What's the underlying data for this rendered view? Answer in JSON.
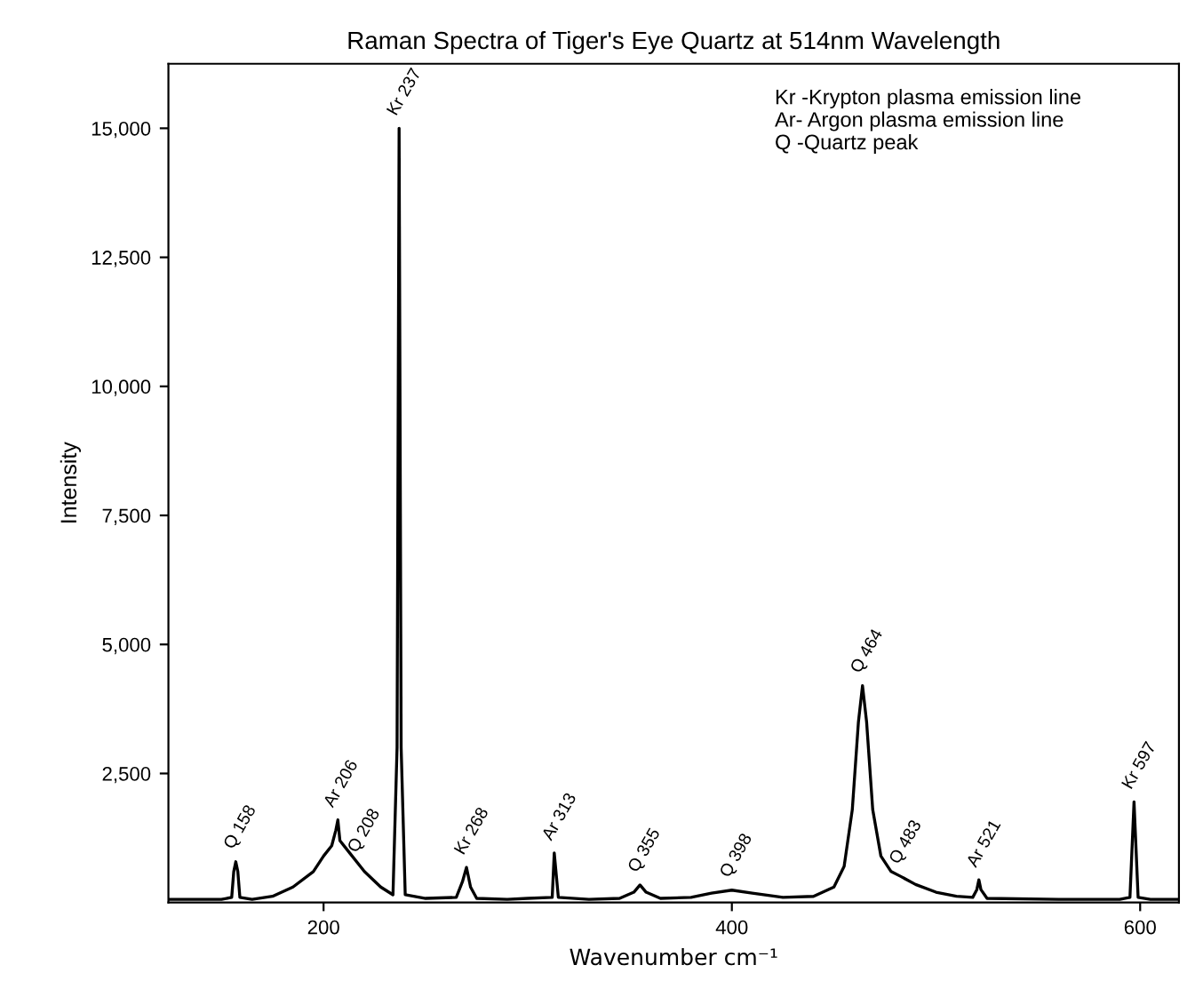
{
  "chart_data": {
    "type": "line",
    "title": "Raman Spectra of Tiger's Eye Quartz at 514nm Wavelength",
    "xlabel": "Wavenumber cm⁻¹",
    "ylabel": "Intensity",
    "xlim": [
      124,
      619
    ],
    "ylim": [
      0,
      16250
    ],
    "xticks": [
      200,
      400,
      600
    ],
    "yticks": [
      {
        "value": 2500,
        "label": "2,500"
      },
      {
        "value": 5000,
        "label": "5,000"
      },
      {
        "value": 7500,
        "label": "7,500"
      },
      {
        "value": 10000,
        "label": "10,000"
      },
      {
        "value": 12500,
        "label": "12,500"
      },
      {
        "value": 15000,
        "label": "15,000"
      }
    ],
    "grid": false,
    "marker": "none",
    "line_style": "solid",
    "series": [
      {
        "color": "#000000",
        "x": [
          124,
          150,
          155,
          156,
          157,
          158,
          159,
          165,
          175,
          185,
          195,
          200,
          204,
          206,
          207,
          208,
          212,
          220,
          228,
          234,
          236,
          237,
          238,
          240,
          250,
          265,
          268,
          270,
          272,
          275,
          290,
          300,
          312,
          313,
          315,
          330,
          345,
          352,
          355,
          358,
          365,
          380,
          390,
          400,
          410,
          425,
          440,
          450,
          455,
          459,
          462,
          464,
          466,
          469,
          473,
          478,
          483,
          490,
          500,
          510,
          518,
          520,
          521,
          522,
          525,
          560,
          590,
          595,
          597,
          599,
          605,
          619
        ],
        "values": [
          60,
          60,
          100,
          600,
          790,
          600,
          100,
          60,
          120,
          300,
          600,
          900,
          1100,
          1400,
          1600,
          1200,
          1000,
          600,
          300,
          150,
          3000,
          15000,
          3000,
          150,
          80,
          100,
          400,
          680,
          300,
          80,
          60,
          80,
          100,
          960,
          100,
          60,
          80,
          200,
          340,
          200,
          80,
          100,
          180,
          240,
          180,
          100,
          120,
          300,
          700,
          1800,
          3500,
          4200,
          3500,
          1800,
          900,
          600,
          500,
          350,
          200,
          120,
          100,
          250,
          440,
          250,
          80,
          60,
          60,
          100,
          1950,
          100,
          60,
          60
        ]
      }
    ],
    "annotations": [
      {
        "text": "Q 158",
        "x": 157,
        "y": 790
      },
      {
        "text": "Ar 206",
        "x": 206,
        "y": 1600
      },
      {
        "text": "Q 208",
        "x": 208,
        "y": 1200
      },
      {
        "text": "Kr 237",
        "x": 237,
        "y": 15000
      },
      {
        "text": "Kr 268",
        "x": 270,
        "y": 680
      },
      {
        "text": "Ar 313",
        "x": 313,
        "y": 960
      },
      {
        "text": "Q 355",
        "x": 355,
        "y": 340
      },
      {
        "text": "Q 398",
        "x": 400,
        "y": 240
      },
      {
        "text": "Q 464",
        "x": 464,
        "y": 4200
      },
      {
        "text": "Q 483",
        "x": 483,
        "y": 500
      },
      {
        "text": "Ar 521",
        "x": 521,
        "y": 440
      },
      {
        "text": "Kr 597",
        "x": 597,
        "y": 1950
      },
      "Kr -Krypton plasma emission line\nAr- Argon plasma emission line\nQ -Quartz peak"
    ]
  }
}
